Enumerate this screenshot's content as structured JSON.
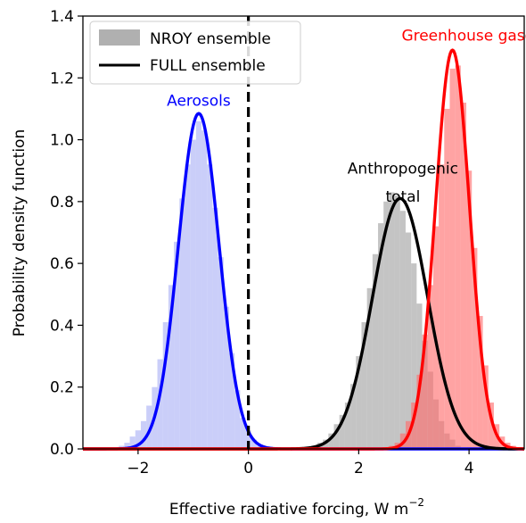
{
  "chart_data": {
    "type": "histogram+line",
    "xlabel": "Effective radiative forcing, W m",
    "xlabel_superscript": "−2",
    "ylabel": "Probability density function",
    "xlim": [
      -3,
      5
    ],
    "ylim": [
      0,
      1.4
    ],
    "xticks": [
      -2,
      0,
      2,
      4
    ],
    "xtick_labels": [
      "−2",
      "0",
      "2",
      "4"
    ],
    "yticks": [
      0.0,
      0.2,
      0.4,
      0.6,
      0.8,
      1.0,
      1.2,
      1.4
    ],
    "ytick_labels": [
      "0.0",
      "0.2",
      "0.4",
      "0.6",
      "0.8",
      "1.0",
      "1.2",
      "1.4"
    ],
    "legend": {
      "placement": "top-left",
      "entries": [
        {
          "label": "NROY ensemble",
          "style": "patch",
          "color": "#b0b0b0"
        },
        {
          "label": "FULL ensemble",
          "style": "line",
          "color": "#000000"
        }
      ]
    },
    "reference_line": {
      "x": 0,
      "style": "dashed",
      "color": "#000000"
    },
    "annotations": [
      {
        "text": "Aerosols",
        "color": "#0000ff",
        "x": -0.9,
        "y": 1.11
      },
      {
        "text": "Anthropogenic",
        "color": "#000000",
        "x": 2.8,
        "y": 0.89
      },
      {
        "text": "total",
        "color": "#000000",
        "x": 2.8,
        "y": 0.8
      },
      {
        "text": "Greenhouse gases",
        "color": "#ff0000",
        "x": 4.05,
        "y": 1.32
      }
    ],
    "series": [
      {
        "name": "Aerosols",
        "color": "#0000ff",
        "fill": "#aab0f5",
        "curve": {
          "mu": -0.9,
          "sigma": 0.37,
          "peak": 1.085
        },
        "histogram": {
          "bin_width": 0.1,
          "bins": [
            [
              -2.3,
              0.01
            ],
            [
              -2.2,
              0.02
            ],
            [
              -2.1,
              0.04
            ],
            [
              -2.0,
              0.06
            ],
            [
              -1.9,
              0.09
            ],
            [
              -1.8,
              0.14
            ],
            [
              -1.7,
              0.2
            ],
            [
              -1.6,
              0.29
            ],
            [
              -1.5,
              0.41
            ],
            [
              -1.4,
              0.53
            ],
            [
              -1.3,
              0.67
            ],
            [
              -1.2,
              0.81
            ],
            [
              -1.1,
              0.92
            ],
            [
              -1.0,
              1.0
            ],
            [
              -0.9,
              1.06
            ],
            [
              -0.8,
              1.03
            ],
            [
              -0.7,
              0.92
            ],
            [
              -0.6,
              0.78
            ],
            [
              -0.5,
              0.62
            ],
            [
              -0.4,
              0.46
            ],
            [
              -0.3,
              0.31
            ],
            [
              -0.2,
              0.19
            ],
            [
              -0.1,
              0.1
            ],
            [
              0.0,
              0.06
            ],
            [
              0.1,
              0.03
            ],
            [
              0.2,
              0.01
            ]
          ]
        }
      },
      {
        "name": "Anthropogenic total",
        "color": "#000000",
        "fill": "#a0a0a0",
        "curve": {
          "mu": 2.75,
          "sigma": 0.5,
          "peak": 0.81
        },
        "histogram": {
          "bin_width": 0.1,
          "bins": [
            [
              1.2,
              0.01
            ],
            [
              1.3,
              0.02
            ],
            [
              1.4,
              0.03
            ],
            [
              1.5,
              0.05
            ],
            [
              1.6,
              0.08
            ],
            [
              1.7,
              0.11
            ],
            [
              1.8,
              0.15
            ],
            [
              1.9,
              0.21
            ],
            [
              2.0,
              0.3
            ],
            [
              2.1,
              0.41
            ],
            [
              2.2,
              0.52
            ],
            [
              2.3,
              0.63
            ],
            [
              2.4,
              0.73
            ],
            [
              2.5,
              0.8
            ],
            [
              2.6,
              0.83
            ],
            [
              2.7,
              0.82
            ],
            [
              2.8,
              0.77
            ],
            [
              2.9,
              0.7
            ],
            [
              3.0,
              0.6
            ],
            [
              3.1,
              0.47
            ],
            [
              3.2,
              0.35
            ],
            [
              3.3,
              0.25
            ],
            [
              3.4,
              0.16
            ],
            [
              3.5,
              0.09
            ],
            [
              3.6,
              0.05
            ],
            [
              3.7,
              0.03
            ],
            [
              3.8,
              0.01
            ]
          ]
        }
      },
      {
        "name": "Greenhouse gases",
        "color": "#ff0000",
        "fill": "#ff6b6b",
        "curve": {
          "mu": 3.7,
          "sigma": 0.31,
          "peak": 1.29
        },
        "histogram": {
          "bin_width": 0.1,
          "bins": [
            [
              2.6,
              0.01
            ],
            [
              2.7,
              0.02
            ],
            [
              2.8,
              0.05
            ],
            [
              2.9,
              0.09
            ],
            [
              3.0,
              0.15
            ],
            [
              3.1,
              0.24
            ],
            [
              3.2,
              0.37
            ],
            [
              3.3,
              0.53
            ],
            [
              3.4,
              0.72
            ],
            [
              3.5,
              0.92
            ],
            [
              3.6,
              1.1
            ],
            [
              3.7,
              1.23
            ],
            [
              3.8,
              1.24
            ],
            [
              3.9,
              1.12
            ],
            [
              4.0,
              0.9
            ],
            [
              4.1,
              0.65
            ],
            [
              4.2,
              0.43
            ],
            [
              4.3,
              0.27
            ],
            [
              4.4,
              0.15
            ],
            [
              4.5,
              0.08
            ],
            [
              4.6,
              0.04
            ],
            [
              4.7,
              0.02
            ],
            [
              4.8,
              0.01
            ]
          ]
        }
      }
    ]
  }
}
